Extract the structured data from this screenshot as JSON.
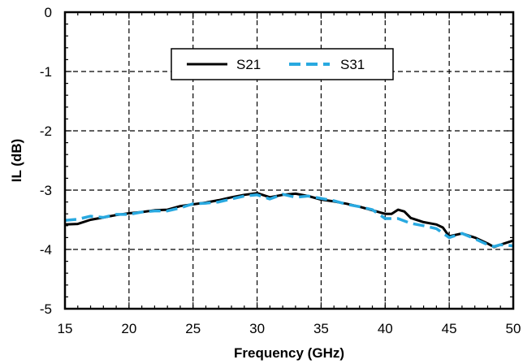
{
  "chart_data": {
    "type": "line",
    "title": "",
    "xlabel": "Frequency (GHz)",
    "ylabel": "IL (dB)",
    "xlim": [
      15,
      50
    ],
    "ylim": [
      -5,
      0
    ],
    "xticks": [
      "15",
      "20",
      "25",
      "30",
      "35",
      "40",
      "45",
      "50"
    ],
    "yticks": [
      "0",
      "-1",
      "-2",
      "-3",
      "-4",
      "-5"
    ],
    "grid": true,
    "legend_position": "top-center",
    "series": [
      {
        "name": "S21",
        "color": "#000000",
        "style": "solid",
        "x": [
          15,
          16,
          17,
          18,
          19,
          20,
          21,
          22,
          23,
          24,
          25,
          26,
          27,
          28,
          29,
          30,
          31,
          32,
          33,
          34,
          35,
          36,
          37,
          38,
          39,
          40,
          40.5,
          41,
          41.5,
          42,
          43,
          44,
          44.5,
          45,
          46,
          47,
          48,
          48.5,
          49,
          50
        ],
        "y": [
          -3.58,
          -3.57,
          -3.5,
          -3.46,
          -3.42,
          -3.39,
          -3.37,
          -3.34,
          -3.33,
          -3.27,
          -3.24,
          -3.21,
          -3.17,
          -3.12,
          -3.08,
          -3.05,
          -3.12,
          -3.08,
          -3.06,
          -3.1,
          -3.16,
          -3.19,
          -3.23,
          -3.28,
          -3.34,
          -3.4,
          -3.4,
          -3.33,
          -3.36,
          -3.47,
          -3.54,
          -3.58,
          -3.63,
          -3.78,
          -3.73,
          -3.8,
          -3.9,
          -3.96,
          -3.92,
          -3.85
        ]
      },
      {
        "name": "S31",
        "color": "#29a9e0",
        "style": "dashed",
        "x": [
          15,
          16,
          17,
          18,
          19,
          20,
          21,
          22,
          23,
          24,
          25,
          26,
          27,
          28,
          29,
          30,
          31,
          32,
          33,
          34,
          35,
          36,
          37,
          38,
          39,
          40,
          41,
          42,
          43,
          44,
          45,
          46,
          47,
          48,
          48.5,
          49,
          50
        ],
        "y": [
          -3.51,
          -3.49,
          -3.44,
          -3.46,
          -3.41,
          -3.41,
          -3.37,
          -3.35,
          -3.35,
          -3.3,
          -3.23,
          -3.22,
          -3.2,
          -3.15,
          -3.1,
          -3.08,
          -3.15,
          -3.07,
          -3.12,
          -3.1,
          -3.14,
          -3.18,
          -3.24,
          -3.28,
          -3.33,
          -3.48,
          -3.48,
          -3.56,
          -3.6,
          -3.65,
          -3.8,
          -3.73,
          -3.82,
          -3.92,
          -3.95,
          -3.92,
          -3.94
        ]
      }
    ]
  }
}
